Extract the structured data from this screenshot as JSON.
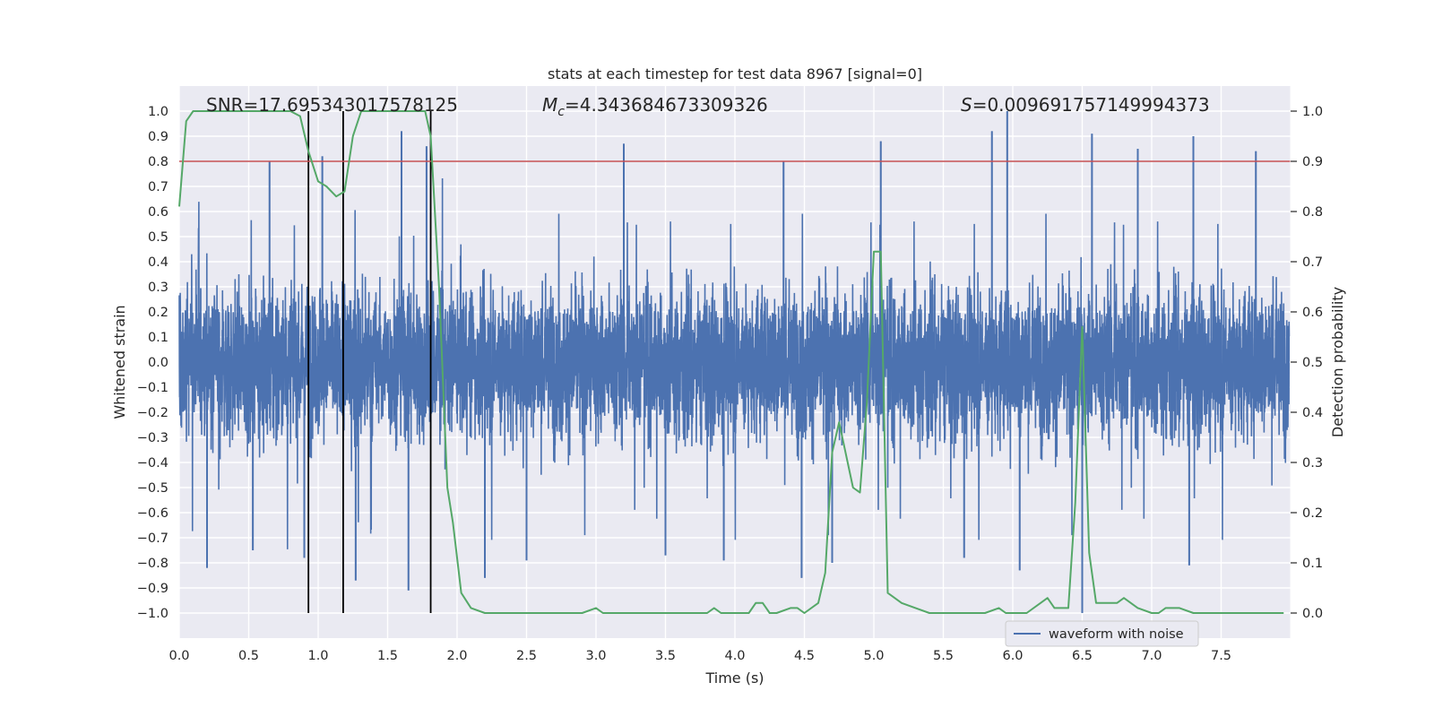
{
  "chart_data": {
    "type": "line",
    "title": "stats at each timestep for test data 8967 [signal=0]",
    "xlabel": "Time (s)",
    "ylabel_left": "Whitened strain",
    "ylabel_right": "Detection probability",
    "xlim": [
      0.0,
      8.0
    ],
    "ylim_left": [
      -1.1,
      1.1
    ],
    "ylim_right": [
      -0.05,
      1.05
    ],
    "x_ticks": [
      "0.0",
      "0.5",
      "1.0",
      "1.5",
      "2.0",
      "2.5",
      "3.0",
      "3.5",
      "4.0",
      "4.5",
      "5.0",
      "5.5",
      "6.0",
      "6.5",
      "7.0",
      "7.5"
    ],
    "y_ticks_left": [
      "1.0",
      "0.9",
      "0.8",
      "0.7",
      "0.6",
      "0.5",
      "0.4",
      "0.3",
      "0.2",
      "0.1",
      "0.0",
      "−0.1",
      "−0.2",
      "−0.3",
      "−0.4",
      "−0.5",
      "−0.6",
      "−0.7",
      "−0.8",
      "−0.9",
      "−1.0"
    ],
    "y_ticks_right": [
      "1.0",
      "0.9",
      "0.8",
      "0.7",
      "0.6",
      "0.5",
      "0.4",
      "0.3",
      "0.2",
      "0.1",
      "0.0"
    ],
    "annotations": {
      "snr": "SNR=17.695343017578125",
      "mc_symbol": "M",
      "mc_sub": "c",
      "mc_value": "=4.343684673309326",
      "s_symbol": "S",
      "s_value": "=0.009691757149994373"
    },
    "threshold": {
      "axis": "right",
      "value": 0.9,
      "color": "#c44e52"
    },
    "vertical_markers": {
      "x": [
        0.93,
        1.18,
        1.81
      ],
      "y_range": [
        -1.0,
        1.0
      ],
      "color": "#000000"
    },
    "series": [
      {
        "name": "waveform with noise",
        "axis": "left",
        "color": "#4c72b0",
        "description": "dense whitened strain noise, sample rate ~2048 Hz",
        "typical_amplitude": 0.38,
        "spikes": [
          {
            "x": 0.2,
            "y": -0.82
          },
          {
            "x": 0.53,
            "y": -0.75
          },
          {
            "x": 0.65,
            "y": 0.8
          },
          {
            "x": 0.9,
            "y": -0.78
          },
          {
            "x": 1.03,
            "y": 0.82
          },
          {
            "x": 1.27,
            "y": -0.87
          },
          {
            "x": 1.65,
            "y": -0.91
          },
          {
            "x": 1.6,
            "y": 0.92
          },
          {
            "x": 2.2,
            "y": -0.86
          },
          {
            "x": 2.5,
            "y": -0.79
          },
          {
            "x": 3.2,
            "y": 0.87
          },
          {
            "x": 3.5,
            "y": -0.77
          },
          {
            "x": 3.92,
            "y": -0.79
          },
          {
            "x": 4.35,
            "y": 0.8
          },
          {
            "x": 4.48,
            "y": -0.86
          },
          {
            "x": 5.05,
            "y": 0.88
          },
          {
            "x": 5.65,
            "y": -0.78
          },
          {
            "x": 5.85,
            "y": 0.92
          },
          {
            "x": 5.96,
            "y": 1.0
          },
          {
            "x": 6.05,
            "y": -0.83
          },
          {
            "x": 6.5,
            "y": -1.0
          },
          {
            "x": 6.57,
            "y": 0.91
          },
          {
            "x": 6.9,
            "y": 0.85
          },
          {
            "x": 7.3,
            "y": 0.9
          },
          {
            "x": 7.27,
            "y": -0.81
          },
          {
            "x": 7.75,
            "y": 0.84
          },
          {
            "x": 1.78,
            "y": 0.86
          },
          {
            "x": 4.7,
            "y": -0.8
          }
        ]
      },
      {
        "name": "detection probability",
        "axis": "right",
        "color": "#55a868",
        "x": [
          0.0,
          0.05,
          0.1,
          0.2,
          0.3,
          0.4,
          0.5,
          0.6,
          0.7,
          0.8,
          0.87,
          0.93,
          1.0,
          1.06,
          1.13,
          1.19,
          1.25,
          1.31,
          1.4,
          1.5,
          1.6,
          1.7,
          1.77,
          1.81,
          1.87,
          1.93,
          1.97,
          2.03,
          2.1,
          2.2,
          2.3,
          2.4,
          2.5,
          2.6,
          2.7,
          2.8,
          2.9,
          3.0,
          3.05,
          3.1,
          3.2,
          3.3,
          3.4,
          3.5,
          3.6,
          3.7,
          3.8,
          3.85,
          3.9,
          4.0,
          4.1,
          4.15,
          4.2,
          4.25,
          4.3,
          4.4,
          4.45,
          4.5,
          4.6,
          4.65,
          4.7,
          4.75,
          4.85,
          4.9,
          4.95,
          5.0,
          5.05,
          5.1,
          5.2,
          5.3,
          5.4,
          5.5,
          5.6,
          5.7,
          5.8,
          5.9,
          5.95,
          6.0,
          6.1,
          6.2,
          6.25,
          6.3,
          6.4,
          6.45,
          6.5,
          6.55,
          6.6,
          6.65,
          6.75,
          6.8,
          6.9,
          7.0,
          7.05,
          7.1,
          7.2,
          7.3,
          7.4,
          7.5,
          7.6,
          7.7,
          7.8,
          7.9,
          7.95
        ],
        "y": [
          0.81,
          0.98,
          1.0,
          1.0,
          1.0,
          1.0,
          1.0,
          1.0,
          1.0,
          1.0,
          0.99,
          0.92,
          0.86,
          0.85,
          0.83,
          0.84,
          0.95,
          1.0,
          1.0,
          1.0,
          1.0,
          1.0,
          1.0,
          0.95,
          0.65,
          0.25,
          0.18,
          0.04,
          0.01,
          0.0,
          0.0,
          0.0,
          0.0,
          0.0,
          0.0,
          0.0,
          0.0,
          0.01,
          0.0,
          0.0,
          0.0,
          0.0,
          0.0,
          0.0,
          0.0,
          0.0,
          0.0,
          0.01,
          0.0,
          0.0,
          0.0,
          0.02,
          0.02,
          0.0,
          0.0,
          0.01,
          0.01,
          0.0,
          0.02,
          0.08,
          0.32,
          0.38,
          0.25,
          0.24,
          0.42,
          0.72,
          0.72,
          0.04,
          0.02,
          0.01,
          0.0,
          0.0,
          0.0,
          0.0,
          0.0,
          0.01,
          0.0,
          0.0,
          0.0,
          0.02,
          0.03,
          0.01,
          0.01,
          0.22,
          0.57,
          0.12,
          0.02,
          0.02,
          0.02,
          0.03,
          0.01,
          0.0,
          0.0,
          0.01,
          0.01,
          0.0,
          0.0,
          0.0,
          0.0,
          0.0,
          0.0,
          0.0,
          0.0
        ]
      }
    ],
    "legend": {
      "position": "bottom-right",
      "entries": [
        "waveform with noise"
      ]
    }
  }
}
